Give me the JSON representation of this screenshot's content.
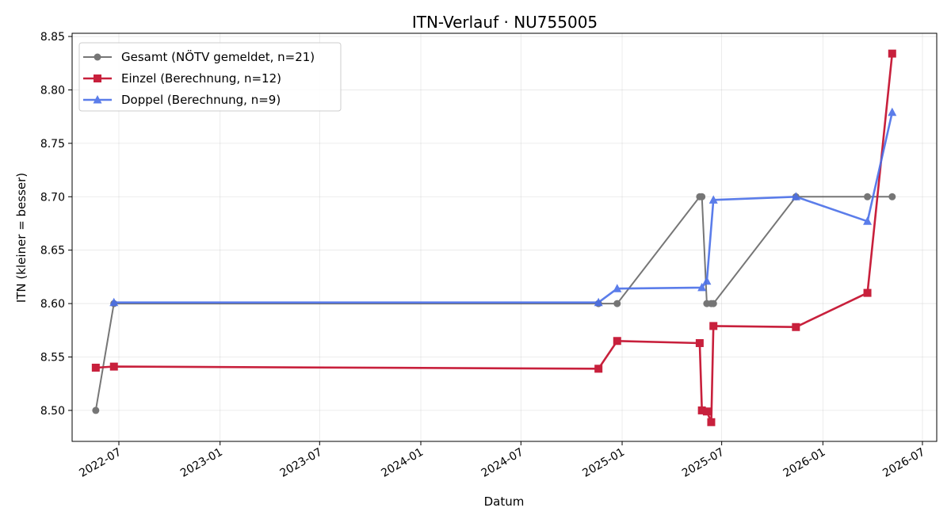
{
  "chart_data": {
    "type": "line",
    "title": "ITN-Verlauf · NU755005",
    "xlabel": "Datum",
    "ylabel": "ITN  (kleiner = besser)",
    "xlim": [
      "2022-04-07",
      "2026-07-27"
    ],
    "ylim": [
      8.471,
      8.853
    ],
    "x_ticks": [
      "2022-07",
      "2023-01",
      "2023-07",
      "2024-01",
      "2024-07",
      "2025-01",
      "2025-07",
      "2026-01",
      "2026-07"
    ],
    "y_ticks": [
      "8.50",
      "8.55",
      "8.60",
      "8.65",
      "8.70",
      "8.75",
      "8.80",
      "8.85"
    ],
    "grid": true,
    "legend_position": "top-left",
    "series": [
      {
        "name": "Gesamt (NÖTV gemeldet, n=21)",
        "color": "#555555",
        "marker": "circle",
        "points": [
          {
            "x": "2022-05-20",
            "y": 8.5
          },
          {
            "x": "2022-06-22",
            "y": 8.6
          },
          {
            "x": "2024-11-19",
            "y": 8.6
          },
          {
            "x": "2024-12-23",
            "y": 8.6
          },
          {
            "x": "2025-05-22",
            "y": 8.7
          },
          {
            "x": "2025-05-26",
            "y": 8.7
          },
          {
            "x": "2025-06-04",
            "y": 8.6
          },
          {
            "x": "2025-06-12",
            "y": 8.6
          },
          {
            "x": "2025-06-16",
            "y": 8.6
          },
          {
            "x": "2025-11-13",
            "y": 8.7
          },
          {
            "x": "2026-03-23",
            "y": 8.7
          },
          {
            "x": "2026-05-07",
            "y": 8.7
          }
        ]
      },
      {
        "name": "Einzel (Berechnung, n=12)",
        "color": "#c8203c",
        "marker": "square",
        "points": [
          {
            "x": "2022-05-20",
            "y": 8.54
          },
          {
            "x": "2022-06-22",
            "y": 8.541
          },
          {
            "x": "2024-11-19",
            "y": 8.539
          },
          {
            "x": "2024-12-23",
            "y": 8.565
          },
          {
            "x": "2025-05-22",
            "y": 8.563
          },
          {
            "x": "2025-05-26",
            "y": 8.5
          },
          {
            "x": "2025-06-04",
            "y": 8.499
          },
          {
            "x": "2025-06-12",
            "y": 8.489
          },
          {
            "x": "2025-06-16",
            "y": 8.579
          },
          {
            "x": "2025-11-13",
            "y": 8.578
          },
          {
            "x": "2026-03-23",
            "y": 8.61
          },
          {
            "x": "2026-05-07",
            "y": 8.834
          }
        ]
      },
      {
        "name": "Doppel (Berechnung, n=9)",
        "color": "#4a6fe8",
        "marker": "triangle",
        "points": [
          {
            "x": "2022-06-22",
            "y": 8.601
          },
          {
            "x": "2024-11-19",
            "y": 8.601
          },
          {
            "x": "2024-12-23",
            "y": 8.614
          },
          {
            "x": "2025-05-26",
            "y": 8.615
          },
          {
            "x": "2025-06-04",
            "y": 8.621
          },
          {
            "x": "2025-06-16",
            "y": 8.697
          },
          {
            "x": "2025-11-13",
            "y": 8.7
          },
          {
            "x": "2026-03-23",
            "y": 8.677
          },
          {
            "x": "2026-05-07",
            "y": 8.779
          }
        ]
      }
    ]
  }
}
